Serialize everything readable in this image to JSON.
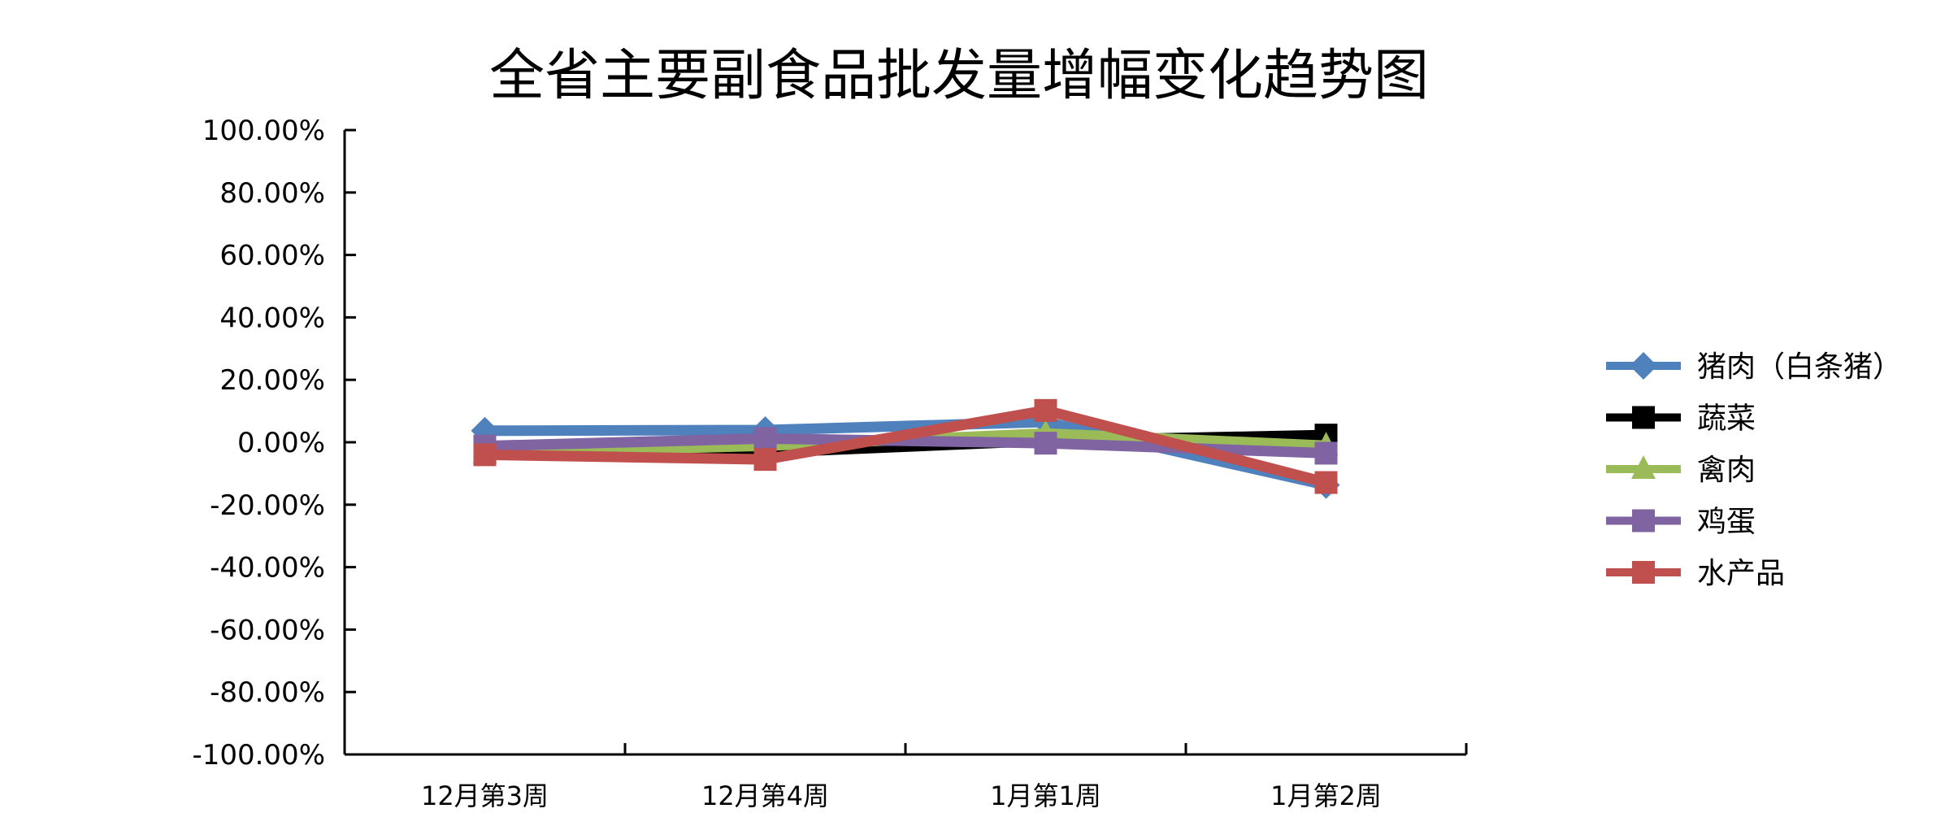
{
  "chart_data": {
    "type": "line",
    "title": "全省主要副食品批发量增幅变化趋势图",
    "categories": [
      "12月第3周",
      "12月第4周",
      "1月第1周",
      "1月第2周"
    ],
    "ylim": [
      -100,
      100
    ],
    "yticks": [
      "100.00%",
      "80.00%",
      "60.00%",
      "40.00%",
      "20.00%",
      "0.00%",
      "-20.00%",
      "-40.00%",
      "-60.00%",
      "-80.00%",
      "-100.00%"
    ],
    "grid": false,
    "legend": "right",
    "series": [
      {
        "name": "猪肉（白条猪）",
        "color": "#4F81BD",
        "marker": "diamond",
        "values": [
          3.7,
          3.9,
          6.5,
          -13.7
        ]
      },
      {
        "name": "蔬菜",
        "color": "#000000",
        "marker": "square",
        "values": [
          -3.0,
          -3.3,
          0.5,
          2.3
        ]
      },
      {
        "name": "禽肉",
        "color": "#9BBB59",
        "marker": "triangle",
        "values": [
          -3.5,
          -1.1,
          2.8,
          -1.1
        ]
      },
      {
        "name": "鸡蛋",
        "color": "#8064A2",
        "marker": "square",
        "values": [
          -1.2,
          1.2,
          -0.3,
          -3.5
        ]
      },
      {
        "name": "水产品",
        "color": "#C0504D",
        "marker": "square",
        "values": [
          -4.0,
          -5.5,
          10.2,
          -12.9
        ]
      }
    ]
  }
}
